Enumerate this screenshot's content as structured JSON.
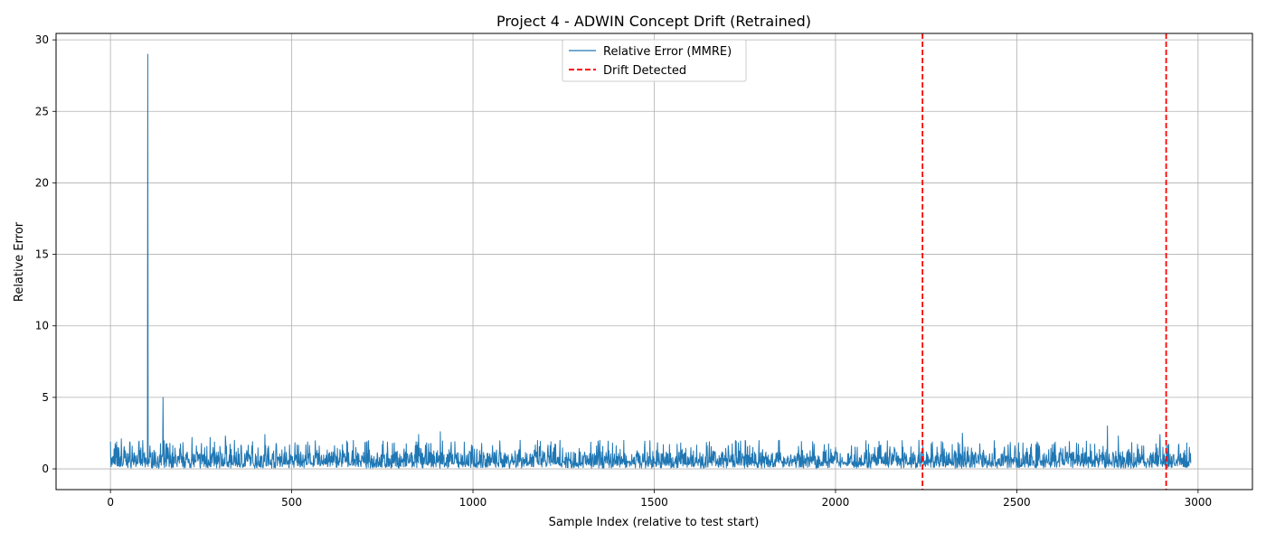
{
  "chart_data": {
    "type": "line",
    "title": "Project 4 - ADWIN Concept Drift (Retrained)",
    "xlabel": "Sample Index (relative to test start)",
    "ylabel": "Relative Error",
    "xlim": [
      -150,
      3150
    ],
    "ylim": [
      -1.45,
      30.45
    ],
    "xticks": [
      0,
      500,
      1000,
      1500,
      2000,
      2500,
      3000
    ],
    "xtick_labels": [
      "0",
      "500",
      "1000",
      "1500",
      "2000",
      "2500",
      "3000"
    ],
    "yticks": [
      0,
      5,
      10,
      15,
      20,
      25,
      30
    ],
    "ytick_labels": [
      "0",
      "5",
      "10",
      "15",
      "20",
      "25",
      "30"
    ],
    "grid": true,
    "legend": {
      "position": "top-center",
      "entries": [
        "Relative Error (MMRE)",
        "Drift Detected"
      ]
    },
    "series": [
      {
        "name": "Relative Error (MMRE)",
        "color": "#1f77b4",
        "x_start": 0,
        "x_end": 2980,
        "typical_range": [
          0.0,
          2.0
        ],
        "points": [
          [
            0,
            1.9
          ],
          [
            5,
            0.3
          ],
          [
            10,
            1.4
          ],
          [
            20,
            1.5
          ],
          [
            30,
            2.1
          ],
          [
            60,
            1.6
          ],
          [
            103,
            29.0
          ],
          [
            107,
            0.4
          ],
          [
            145,
            5.0
          ],
          [
            150,
            0.5
          ],
          [
            225,
            2.2
          ],
          [
            275,
            2.2
          ],
          [
            317,
            2.3
          ],
          [
            426,
            2.4
          ],
          [
            640,
            1.7
          ],
          [
            850,
            2.4
          ],
          [
            910,
            2.6
          ],
          [
            1130,
            2.0
          ],
          [
            1240,
            2.0
          ],
          [
            1350,
            2.0
          ],
          [
            1845,
            2.0
          ],
          [
            2350,
            2.5
          ],
          [
            2750,
            3.0
          ],
          [
            2780,
            2.3
          ],
          [
            2895,
            2.4
          ],
          [
            2980,
            0.4
          ]
        ]
      },
      {
        "name": "Drift Detected",
        "color": "#ff0000",
        "style": "dashed",
        "x": [
          2240,
          2912
        ]
      }
    ]
  }
}
